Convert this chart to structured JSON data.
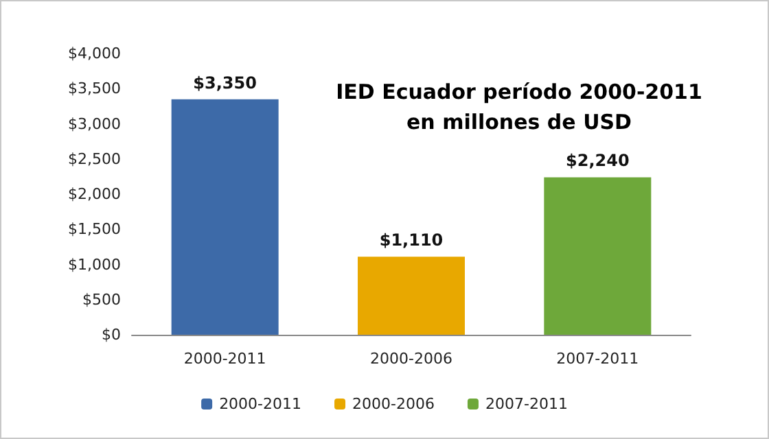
{
  "chart_data": {
    "type": "bar",
    "title": "IED Ecuador período 2000-2011\nen millones de USD",
    "categories": [
      "2000-2011",
      "2000-2006",
      "2007-2011"
    ],
    "series": [
      {
        "name": "2000-2011",
        "color": "#3d6aa8",
        "values": [
          3350,
          null,
          null
        ],
        "value_labels": [
          "$3,350",
          null,
          null
        ]
      },
      {
        "name": "2000-2006",
        "color": "#e8a800",
        "values": [
          null,
          1110,
          null
        ],
        "value_labels": [
          null,
          "$1,110",
          null
        ]
      },
      {
        "name": "2007-2011",
        "color": "#6ea83a",
        "values": [
          null,
          null,
          2240
        ],
        "value_labels": [
          null,
          null,
          "$2,240"
        ]
      }
    ],
    "ylim": [
      0,
      4000
    ],
    "yticks": [
      {
        "value": 0,
        "label": "$0"
      },
      {
        "value": 500,
        "label": "$500"
      },
      {
        "value": 1000,
        "label": "$1,000"
      },
      {
        "value": 1500,
        "label": "$1,500"
      },
      {
        "value": 2000,
        "label": "$2,000"
      },
      {
        "value": 2500,
        "label": "$2,500"
      },
      {
        "value": 3000,
        "label": "$3,000"
      },
      {
        "value": 3500,
        "label": "$3,500"
      },
      {
        "value": 4000,
        "label": "$4,000"
      }
    ],
    "grid": false,
    "legend": "bottom"
  }
}
